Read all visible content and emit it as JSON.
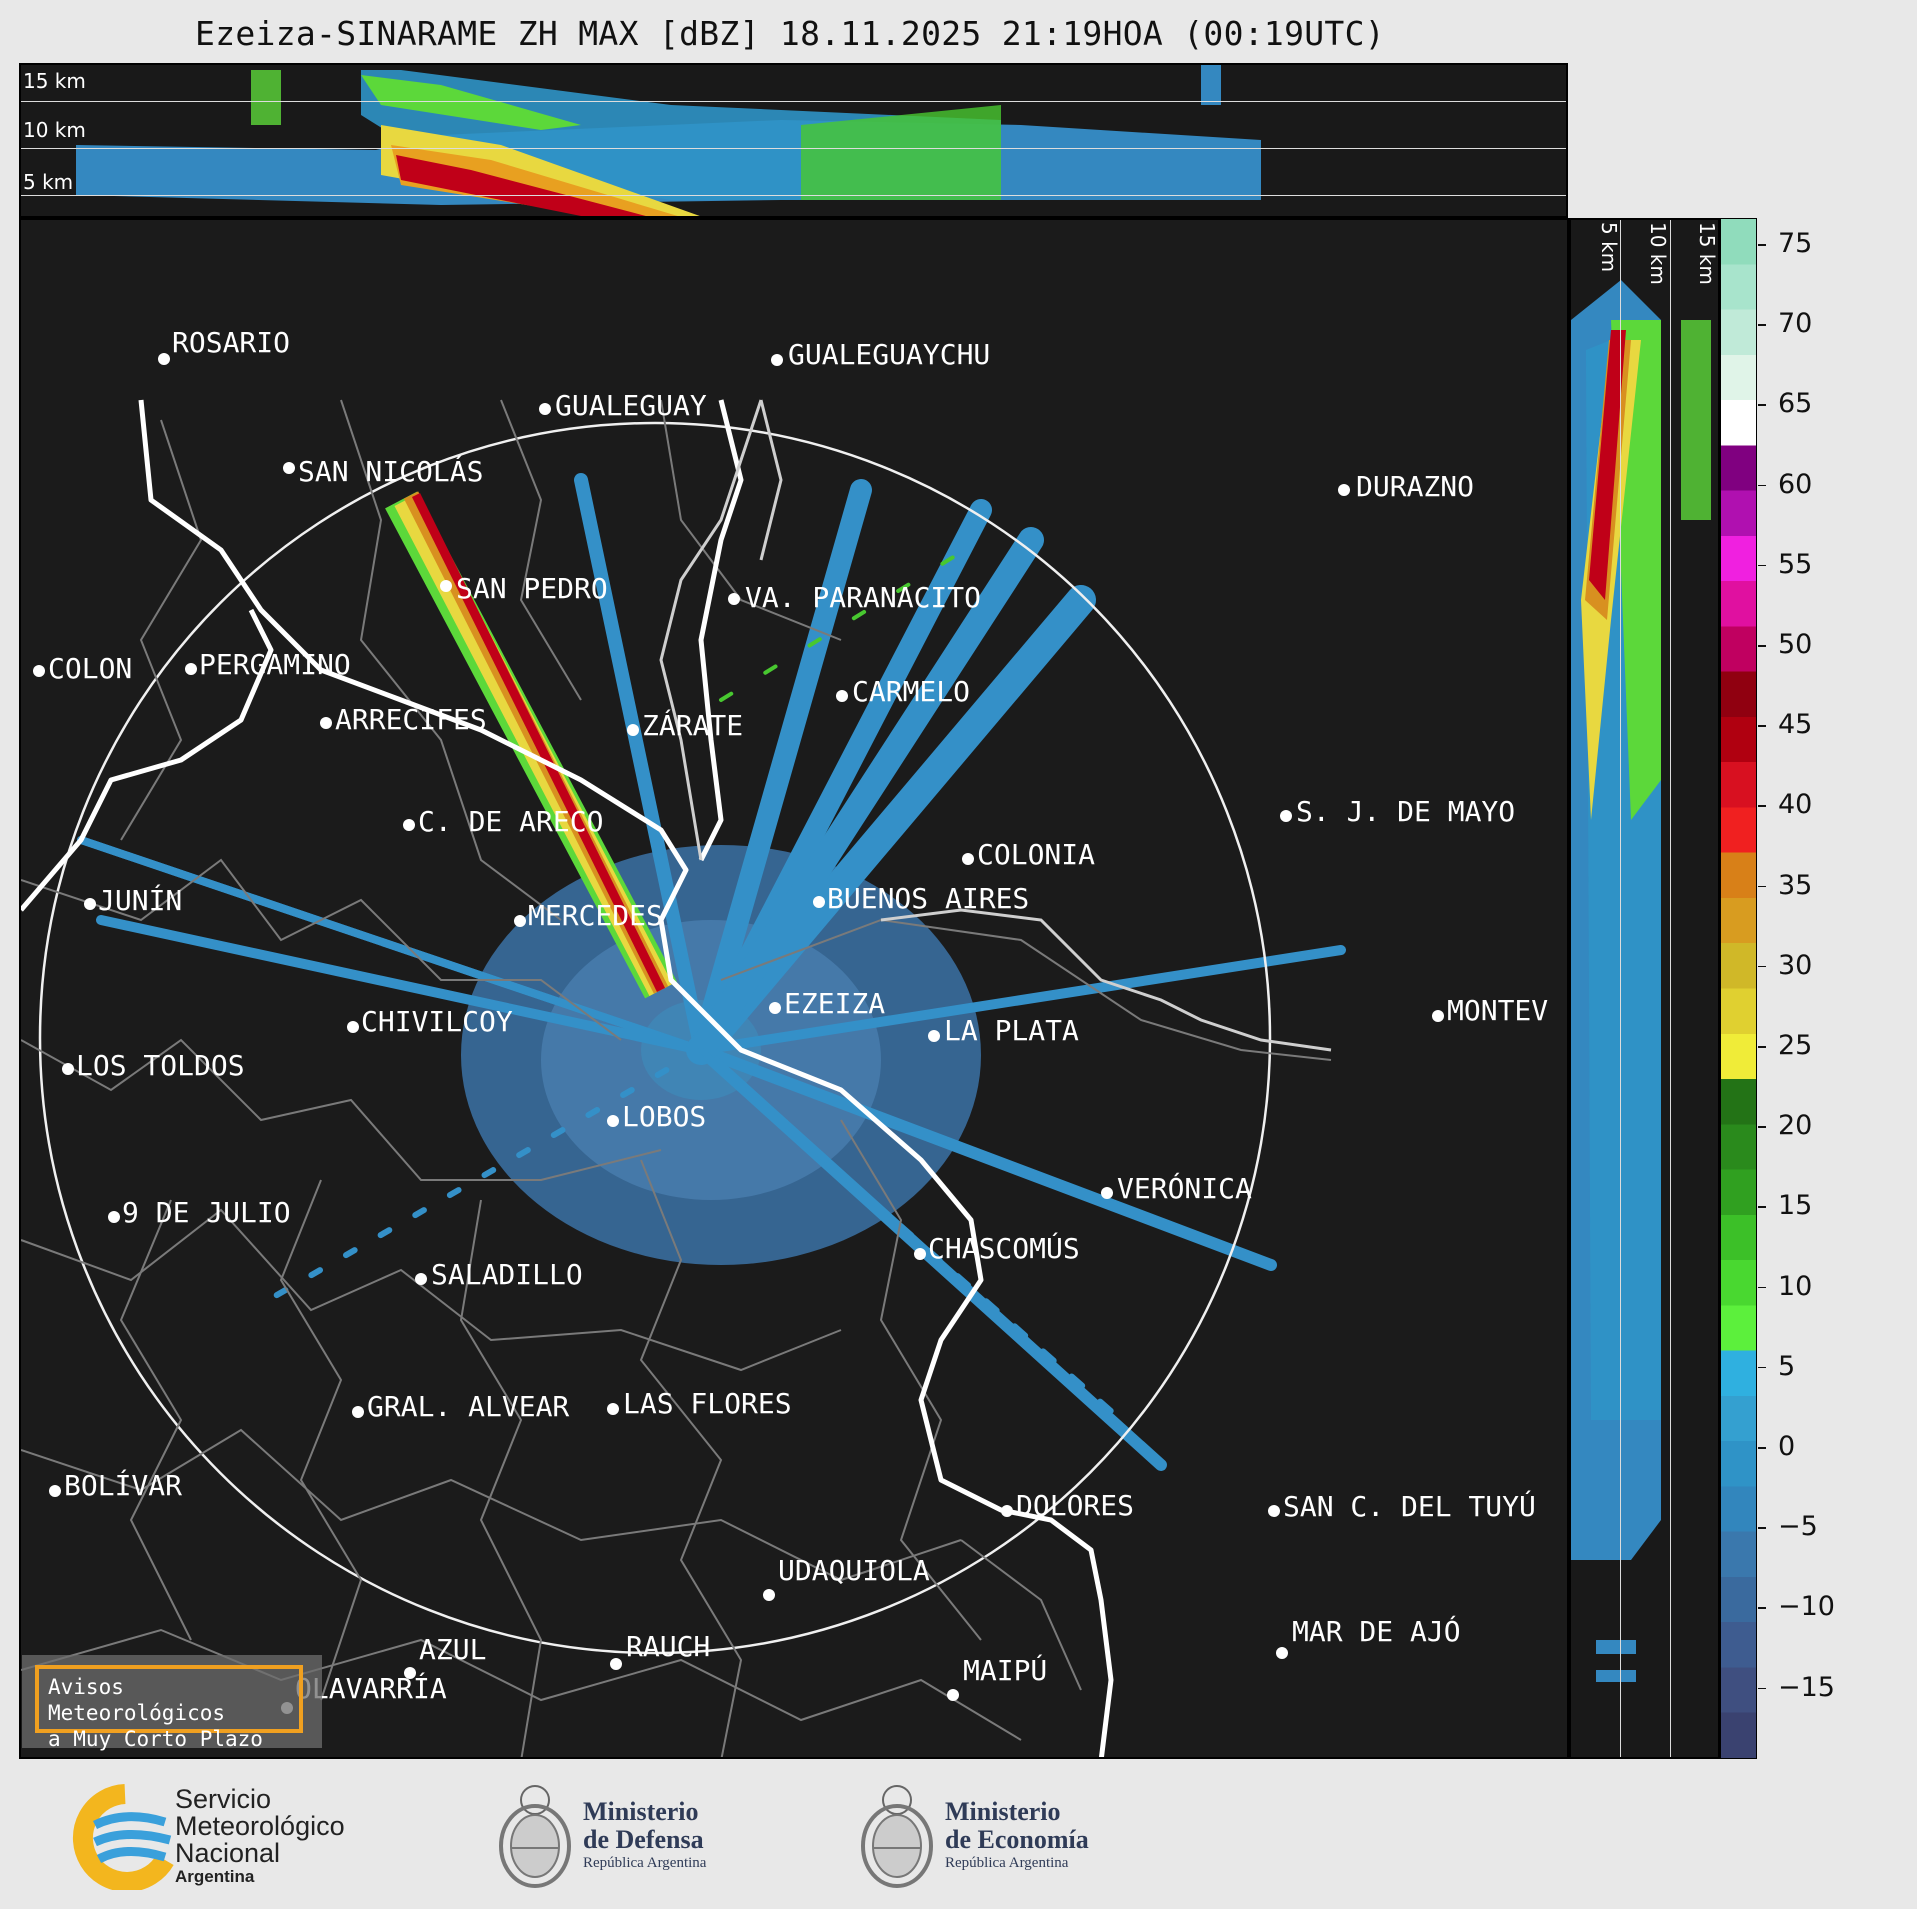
{
  "title": "Ezeiza-SINARAME ZH MAX [dBZ] 18.11.2025 21:19HOA (00:19UTC)",
  "height_labels": [
    "15 km",
    "10 km",
    "5 km"
  ],
  "colorbar": {
    "ticks": [
      "75",
      "70",
      "65",
      "60",
      "55",
      "50",
      "45",
      "40",
      "35",
      "30",
      "25",
      "20",
      "15",
      "10",
      "5",
      "0",
      "−5",
      "−10",
      "−15"
    ],
    "colors": [
      "#3a4270",
      "#3f4f80",
      "#3e5c90",
      "#3a6a9e",
      "#3a78ad",
      "#3286bd",
      "#2f93c7",
      "#34a0d0",
      "#2fb0e0",
      "#5cf03c",
      "#49d830",
      "#3cc028",
      "#30a020",
      "#2a8a1c",
      "#237316",
      "#f0ec38",
      "#e0d030",
      "#d0b828",
      "#d89c20",
      "#d88018",
      "#f02020",
      "#d81020",
      "#b00010",
      "#900010",
      "#c00060",
      "#e010a0",
      "#f020e0",
      "#b010b0",
      "#800080",
      "#ffffff",
      "#e0f4e8",
      "#c0ead8",
      "#a8e4cc",
      "#90dcbc"
    ]
  },
  "cities": [
    {
      "name": "ROSARIO"
    },
    {
      "name": "GUALEGUAYCHU"
    },
    {
      "name": "GUALEGUAY"
    },
    {
      "name": "SAN NICOLÁS"
    },
    {
      "name": "DURAZNO"
    },
    {
      "name": "SAN PEDRO"
    },
    {
      "name": "VA. PARANACITO"
    },
    {
      "name": "COLON"
    },
    {
      "name": "PERGAMINO"
    },
    {
      "name": "CARMELO"
    },
    {
      "name": "ARRECIFES"
    },
    {
      "name": "ZÁRATE"
    },
    {
      "name": "S. J. DE MAYO"
    },
    {
      "name": "C. DE ARECO"
    },
    {
      "name": "COLONIA"
    },
    {
      "name": "BUENOS AIRES"
    },
    {
      "name": "JUNÍN"
    },
    {
      "name": "MERCEDES"
    },
    {
      "name": "MONTEVIDEO"
    },
    {
      "name": "EZEIZA"
    },
    {
      "name": "CHIVILCOY"
    },
    {
      "name": "LA PLATA"
    },
    {
      "name": "LOS TOLDOS"
    },
    {
      "name": "LOBOS"
    },
    {
      "name": "VERÓNICA"
    },
    {
      "name": "9 DE JULIO"
    },
    {
      "name": "CHASCOMÚS"
    },
    {
      "name": "SALADILLO"
    },
    {
      "name": "GRAL. ALVEAR"
    },
    {
      "name": "LAS FLORES"
    },
    {
      "name": "BOLÍVAR"
    },
    {
      "name": "DOLORES"
    },
    {
      "name": "SAN C. DEL TUYÚ"
    },
    {
      "name": "UDAQUIOLA"
    },
    {
      "name": "MAR DE AJÓ"
    },
    {
      "name": "AZUL"
    },
    {
      "name": "RAUCH"
    },
    {
      "name": "OLAVARRÍA"
    },
    {
      "name": "MAIPÚ"
    }
  ],
  "warning": {
    "line1": "Avisos Meteorológicos",
    "line2": "a Muy Corto Plazo"
  },
  "logos": {
    "smn": {
      "line1": "Servicio",
      "line2": "Meteorológico",
      "line3": "Nacional",
      "line4": "Argentina"
    },
    "defensa": {
      "line1": "Ministerio",
      "line2": "de Defensa",
      "line3": "República Argentina"
    },
    "economia": {
      "line1": "Ministerio",
      "line2": "de Economía",
      "line3": "República Argentina"
    }
  }
}
